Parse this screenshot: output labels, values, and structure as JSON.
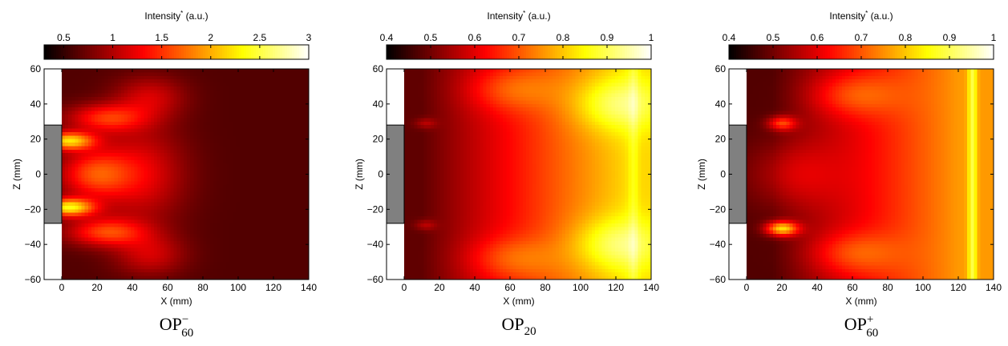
{
  "chart_data": [
    {
      "type": "heatmap",
      "caption": {
        "base": "OP",
        "sup": "−",
        "sub": "60"
      },
      "colorbar": {
        "label": "Intensity",
        "label_sup": "*",
        "unit": "(a.u.)",
        "range": [
          0.3,
          3.0
        ],
        "ticks": [
          "0.5",
          "1",
          "1.5",
          "2",
          "2.5",
          "3"
        ],
        "tick_values": [
          0.5,
          1,
          1.5,
          2,
          2.5,
          3
        ],
        "colormap": "hot"
      },
      "xlabel": "X (mm)",
      "ylabel": "Z (mm)",
      "xlim": [
        -10,
        140
      ],
      "ylim": [
        -60,
        60
      ],
      "xticks": [
        0,
        20,
        40,
        60,
        80,
        100,
        120,
        140
      ],
      "yticks": [
        60,
        40,
        20,
        0,
        -20,
        -40,
        -60
      ],
      "obstacle": {
        "x": [
          -10,
          0
        ],
        "z": [
          -28,
          28
        ],
        "color": "#808080"
      },
      "field": {
        "base": 0.12,
        "blobs": [
          {
            "x": 4,
            "z": 19,
            "sx": 14,
            "sz": 5,
            "a": 0.55
          },
          {
            "x": 4,
            "z": -19,
            "sx": 14,
            "sz": 5,
            "a": 0.6
          },
          {
            "x": 25,
            "z": 32,
            "sx": 22,
            "sz": 8,
            "a": 0.3
          },
          {
            "x": 25,
            "z": -33,
            "sx": 22,
            "sz": 8,
            "a": 0.33
          },
          {
            "x": 18,
            "z": 0,
            "sx": 20,
            "sz": 14,
            "a": 0.32
          },
          {
            "x": 45,
            "z": 0,
            "sx": 25,
            "sz": 28,
            "a": 0.22
          },
          {
            "x": 50,
            "z": 44,
            "sx": 20,
            "sz": 12,
            "a": 0.18
          },
          {
            "x": 50,
            "z": -46,
            "sx": 20,
            "sz": 12,
            "a": 0.18
          }
        ],
        "bands": []
      }
    },
    {
      "type": "heatmap",
      "caption": {
        "base": "OP",
        "sup": "",
        "sub": "20"
      },
      "colorbar": {
        "label": "Intensity",
        "label_sup": "*",
        "unit": "(a.u.)",
        "range": [
          0.4,
          1.0
        ],
        "ticks": [
          "0.4",
          "0.5",
          "0.6",
          "0.7",
          "0.8",
          "0.9",
          "1"
        ],
        "tick_values": [
          0.4,
          0.5,
          0.6,
          0.7,
          0.8,
          0.9,
          1.0
        ],
        "colormap": "hot"
      },
      "xlabel": "X (mm)",
      "ylabel": "Z (mm)",
      "xlim": [
        -10,
        140
      ],
      "ylim": [
        -60,
        60
      ],
      "xticks": [
        0,
        20,
        40,
        60,
        80,
        100,
        120,
        140
      ],
      "yticks": [
        60,
        40,
        20,
        0,
        -20,
        -40,
        -60
      ],
      "obstacle": {
        "x": [
          -10,
          0
        ],
        "z": [
          -28,
          28
        ],
        "color": "#808080"
      },
      "field": {
        "base": 0.14,
        "ramp": {
          "x0": 10,
          "x1": 125,
          "amp": 0.55
        },
        "blobs": [
          {
            "x": 12,
            "z": 29,
            "sx": 6,
            "sz": 3,
            "a": 0.12
          },
          {
            "x": 12,
            "z": -29,
            "sx": 6,
            "sz": 3,
            "a": 0.12
          },
          {
            "x": 60,
            "z": 48,
            "sx": 25,
            "sz": 12,
            "a": 0.15
          },
          {
            "x": 60,
            "z": -48,
            "sx": 25,
            "sz": 12,
            "a": 0.15
          },
          {
            "x": 120,
            "z": 40,
            "sx": 25,
            "sz": 15,
            "a": 0.2
          },
          {
            "x": 120,
            "z": -40,
            "sx": 25,
            "sz": 15,
            "a": 0.2
          }
        ],
        "bands": [
          {
            "x": 130,
            "w": 3,
            "a": 0.08
          }
        ]
      }
    },
    {
      "type": "heatmap",
      "caption": {
        "base": "OP",
        "sup": "+",
        "sub": "60"
      },
      "colorbar": {
        "label": "Intensity",
        "label_sup": "*",
        "unit": "(a.u.)",
        "range": [
          0.4,
          1.0
        ],
        "ticks": [
          "0.4",
          "0.5",
          "0.6",
          "0.7",
          "0.8",
          "0.9",
          "1"
        ],
        "tick_values": [
          0.4,
          0.5,
          0.6,
          0.7,
          0.8,
          0.9,
          1.0
        ],
        "colormap": "hot"
      },
      "xlabel": "X (mm)",
      "ylabel": "Z (mm)",
      "xlim": [
        -10,
        140
      ],
      "ylim": [
        -60,
        60
      ],
      "xticks": [
        0,
        20,
        40,
        60,
        80,
        100,
        120,
        140
      ],
      "yticks": [
        60,
        40,
        20,
        0,
        -20,
        -40,
        -60
      ],
      "obstacle": {
        "x": [
          -10,
          0
        ],
        "z": [
          -28,
          28
        ],
        "color": "#808080"
      },
      "field": {
        "base": 0.12,
        "ramp": {
          "x0": 15,
          "x1": 120,
          "amp": 0.48
        },
        "blobs": [
          {
            "x": 20,
            "z": 29,
            "sx": 8,
            "sz": 4,
            "a": 0.32
          },
          {
            "x": 20,
            "z": -31,
            "sx": 9,
            "sz": 4,
            "a": 0.55
          },
          {
            "x": 25,
            "z": 0,
            "sx": 25,
            "sz": 20,
            "a": 0.15
          },
          {
            "x": 60,
            "z": 45,
            "sx": 25,
            "sz": 12,
            "a": 0.18
          },
          {
            "x": 60,
            "z": -45,
            "sx": 25,
            "sz": 12,
            "a": 0.18
          }
        ],
        "bands": [
          {
            "x": 128,
            "w": 2.5,
            "a": 0.22
          }
        ]
      }
    }
  ]
}
